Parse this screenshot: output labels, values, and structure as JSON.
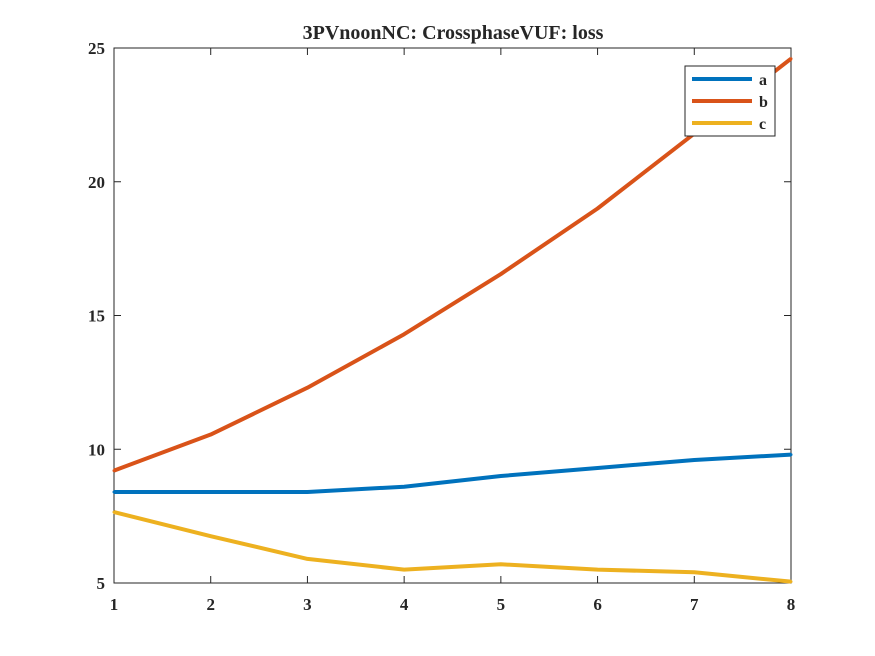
{
  "chart_data": {
    "type": "line",
    "title": "3PVnoonNC: CrossphaseVUF: loss",
    "xlabel": "",
    "ylabel": "",
    "xlim": [
      1,
      8
    ],
    "ylim": [
      5,
      25
    ],
    "x": [
      1,
      2,
      3,
      4,
      5,
      6,
      7,
      8
    ],
    "xticks": [
      "1",
      "2",
      "3",
      "4",
      "5",
      "6",
      "7",
      "8"
    ],
    "yticks": [
      "5",
      "10",
      "15",
      "20",
      "25"
    ],
    "grid": false,
    "legend_position": "top-right",
    "series": [
      {
        "name": "a",
        "color": "#0072BD",
        "values": [
          8.4,
          8.4,
          8.4,
          8.6,
          9.0,
          9.3,
          9.6,
          9.8
        ]
      },
      {
        "name": "b",
        "color": "#D95319",
        "values": [
          9.2,
          10.55,
          12.3,
          14.3,
          16.55,
          19.0,
          21.8,
          24.6
        ]
      },
      {
        "name": "c",
        "color": "#EDB120",
        "values": [
          7.65,
          6.75,
          5.9,
          5.5,
          5.7,
          5.5,
          5.4,
          5.05
        ]
      }
    ]
  }
}
